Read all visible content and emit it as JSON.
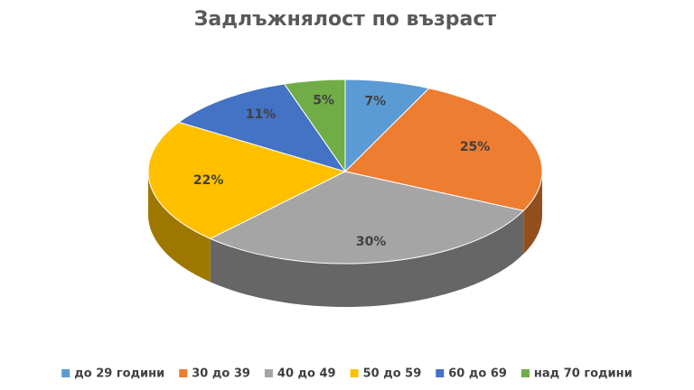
{
  "chart_data": {
    "type": "pie3d",
    "title": "Задлъжнялост по възраст",
    "categories": [
      "до 29 години",
      "30 до 39",
      "40 до 49",
      "50 до 59",
      "60 до 69",
      "над 70 години"
    ],
    "values": [
      7,
      25,
      30,
      22,
      11,
      5
    ],
    "value_labels": [
      "7%",
      "25%",
      "30%",
      "22%",
      "11%",
      "5%"
    ],
    "colors": [
      "#5b9bd5",
      "#ed7d31",
      "#a5a5a5",
      "#ffc000",
      "#4472c4",
      "#70ad47"
    ],
    "legend": "bottom"
  }
}
